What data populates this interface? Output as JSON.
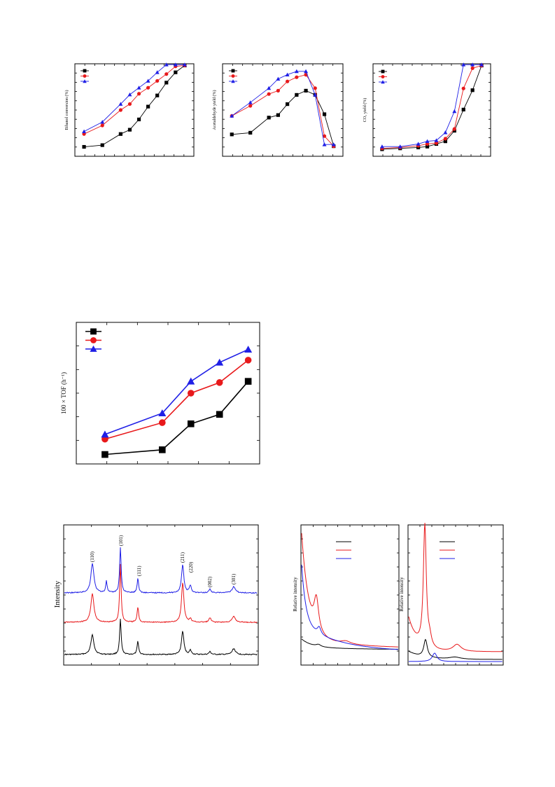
{
  "colors": {
    "black": "#000000",
    "red": "#e8191b",
    "blue": "#1f1fe6"
  },
  "chart_data": [
    {
      "id": "ethanol",
      "type": "line",
      "ylabel": "Ethanol conversion (%)",
      "xlim": [
        0,
        13
      ],
      "ylim": [
        -8,
        100
      ],
      "legend": "top-left",
      "series": [
        {
          "name": "",
          "color": "black",
          "marker": "square",
          "x": [
            1,
            3,
            5,
            6,
            7,
            8,
            9,
            10,
            11,
            12
          ],
          "y": [
            3,
            5,
            18,
            23,
            35,
            50,
            63,
            78,
            90,
            98
          ]
        },
        {
          "name": "",
          "color": "red",
          "marker": "circle",
          "x": [
            1,
            3,
            5,
            6,
            7,
            8,
            9,
            10,
            11,
            12
          ],
          "y": [
            18,
            28,
            46,
            53,
            65,
            72,
            80,
            88,
            97,
            98
          ]
        },
        {
          "name": "",
          "color": "blue",
          "marker": "triangle",
          "x": [
            1,
            3,
            5,
            6,
            7,
            8,
            9,
            10,
            11,
            12
          ],
          "y": [
            21,
            32,
            53,
            64,
            72,
            80,
            90,
            99,
            99,
            99
          ]
        }
      ]
    },
    {
      "id": "acetaldehyde",
      "type": "line",
      "ylabel": "Acetaldehyde yield (%)",
      "xlim": [
        0,
        13
      ],
      "ylim": [
        -10,
        100
      ],
      "legend": "top-left",
      "series": [
        {
          "name": "",
          "color": "black",
          "marker": "square",
          "x": [
            1,
            3,
            5,
            6,
            7,
            8,
            9,
            10,
            11,
            12
          ],
          "y": [
            16,
            18,
            36,
            39,
            52,
            63,
            68,
            63,
            40,
            2
          ]
        },
        {
          "name": "",
          "color": "red",
          "marker": "circle",
          "x": [
            1,
            3,
            5,
            6,
            7,
            8,
            9,
            10,
            11,
            12
          ],
          "y": [
            38,
            50,
            64,
            68,
            79,
            84,
            87,
            71,
            14,
            2
          ]
        },
        {
          "name": "",
          "color": "blue",
          "marker": "triangle",
          "x": [
            1,
            3,
            5,
            6,
            7,
            8,
            9,
            10,
            11,
            12
          ],
          "y": [
            38,
            54,
            71,
            82,
            87,
            91,
            91,
            63,
            4,
            4
          ]
        }
      ]
    },
    {
      "id": "co2",
      "type": "line",
      "ylabel": "CO₂ yield (%)",
      "xlim": [
        0,
        13
      ],
      "ylim": [
        -5,
        100
      ],
      "legend": "top-left",
      "series": [
        {
          "name": "",
          "color": "black",
          "marker": "square",
          "x": [
            1,
            3,
            5,
            6,
            7,
            8,
            9,
            10,
            11,
            12
          ],
          "y": [
            3,
            4,
            5,
            6,
            9,
            12,
            24,
            48,
            70,
            98
          ]
        },
        {
          "name": "",
          "color": "red",
          "marker": "circle",
          "x": [
            1,
            3,
            5,
            6,
            7,
            8,
            9,
            10,
            11,
            12
          ],
          "y": [
            4,
            5,
            7,
            9,
            10,
            15,
            26,
            72,
            95,
            98
          ]
        },
        {
          "name": "",
          "color": "blue",
          "marker": "triangle",
          "x": [
            1,
            3,
            5,
            6,
            7,
            8,
            9,
            10,
            11,
            12
          ],
          "y": [
            6,
            6,
            9,
            12,
            13,
            22,
            46,
            99,
            99,
            99
          ]
        }
      ]
    },
    {
      "id": "tof",
      "type": "line",
      "ylabel": "100 × TOF (h⁻¹)",
      "xlim": [
        0,
        6.4
      ],
      "ylim": [
        0,
        12
      ],
      "legend": "top-left",
      "series": [
        {
          "name": "",
          "color": "black",
          "marker": "square",
          "x": [
            1,
            3,
            4,
            5,
            6
          ],
          "y": [
            0.8,
            1.2,
            3.4,
            4.2,
            7.0
          ]
        },
        {
          "name": "",
          "color": "red",
          "marker": "circle",
          "x": [
            1,
            3,
            4,
            5,
            6
          ],
          "y": [
            2.1,
            3.5,
            6.0,
            6.9,
            8.8
          ]
        },
        {
          "name": "",
          "color": "blue",
          "marker": "triangle",
          "x": [
            1,
            3,
            4,
            5,
            6
          ],
          "y": [
            2.5,
            4.3,
            7.0,
            8.6,
            9.7
          ]
        }
      ]
    },
    {
      "id": "xrd",
      "type": "line",
      "ylabel": "Intensity",
      "annotations": [
        "(110)",
        "(101)",
        "(111)",
        "(211)",
        "(220)",
        "(002)",
        "(301)"
      ],
      "series": [
        {
          "name": "",
          "color": "black",
          "offset": 0
        },
        {
          "name": "",
          "color": "red",
          "offset": 1
        },
        {
          "name": "",
          "color": "blue",
          "offset": 2
        }
      ]
    },
    {
      "id": "tpr-left",
      "type": "line",
      "ylabel": "Relative intensity",
      "legend": "top-right",
      "series": [
        {
          "name": "",
          "color": "black"
        },
        {
          "name": "",
          "color": "red"
        },
        {
          "name": "",
          "color": "blue"
        }
      ]
    },
    {
      "id": "tpr-right",
      "type": "line",
      "ylabel": "Relative intensity",
      "legend": "top-right",
      "series": [
        {
          "name": "",
          "color": "black"
        },
        {
          "name": "",
          "color": "red"
        },
        {
          "name": "",
          "color": "blue"
        }
      ]
    }
  ]
}
